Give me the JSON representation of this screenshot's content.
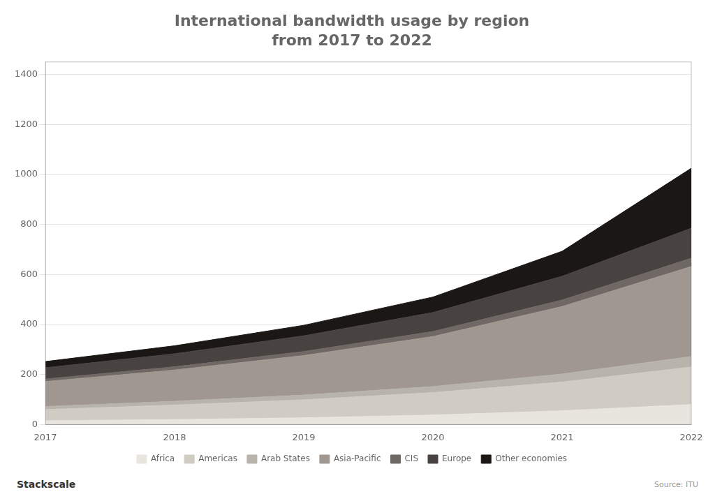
{
  "chart_data": {
    "type": "area",
    "stacked": true,
    "title": "International bandwidth usage by region",
    "subtitle": "from 2017 to 2022",
    "annotations": [
      "Stackscale",
      "Source: ITU"
    ],
    "x": [
      2017,
      2018,
      2019,
      2020,
      2021,
      2022
    ],
    "xlim": [
      2017,
      2022
    ],
    "xticks": [
      2017,
      2018,
      2019,
      2020,
      2021,
      2022
    ],
    "ylim": [
      0,
      1450
    ],
    "yticks": [
      0,
      200,
      400,
      600,
      800,
      1000,
      1200,
      1400
    ],
    "grid": "y",
    "legend": "bottom",
    "series": [
      {
        "name": "Africa",
        "color": "#e8e5df",
        "values": [
          15,
          20,
          27,
          38,
          55,
          80
        ]
      },
      {
        "name": "Americas",
        "color": "#d0ccc4",
        "values": [
          45,
          58,
          72,
          90,
          115,
          150
        ]
      },
      {
        "name": "Arab States",
        "color": "#b8b4ac",
        "values": [
          12,
          15,
          19,
          24,
          32,
          42
        ]
      },
      {
        "name": "Asia-Pacific",
        "color": "#a09890",
        "values": [
          100,
          125,
          158,
          200,
          270,
          360
        ]
      },
      {
        "name": "CIS",
        "color": "#706864",
        "values": [
          10,
          13,
          16,
          20,
          26,
          33
        ]
      },
      {
        "name": "Europe",
        "color": "#484340",
        "values": [
          45,
          52,
          63,
          76,
          95,
          120
        ]
      },
      {
        "name": "Other economies",
        "color": "#1a1714",
        "values": [
          25,
          32,
          42,
          62,
          100,
          240
        ]
      }
    ]
  }
}
